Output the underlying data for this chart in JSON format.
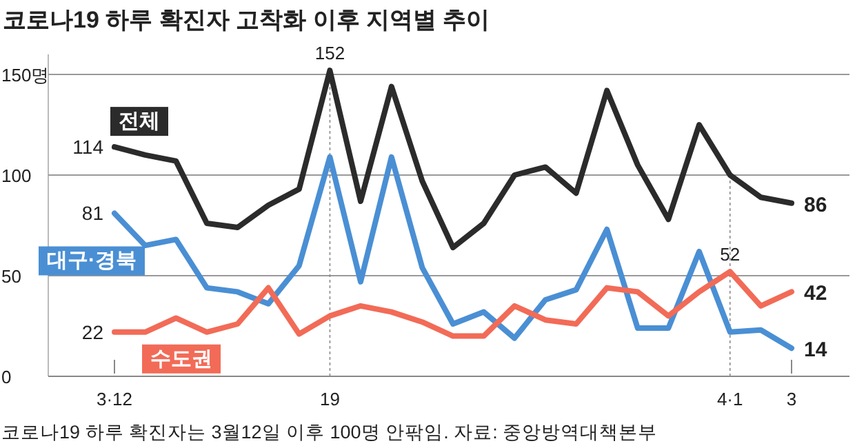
{
  "chart_data": {
    "type": "line",
    "title": "코로나19 하루 확진자 고착화 이후 지역별 추이",
    "categories": [
      "3·12",
      null,
      null,
      null,
      null,
      null,
      null,
      "19",
      null,
      null,
      null,
      null,
      null,
      null,
      null,
      null,
      null,
      null,
      null,
      null,
      "4·1",
      null,
      "3"
    ],
    "series": [
      {
        "name": "전체",
        "color": "#2b2b2b",
        "values": [
          114,
          110,
          107,
          76,
          74,
          85,
          93,
          152,
          87,
          144,
          97,
          64,
          76,
          100,
          104,
          91,
          142,
          105,
          78,
          125,
          100,
          89,
          86
        ],
        "value_labels": [
          "114",
          null,
          null,
          null,
          null,
          null,
          null,
          "152",
          null,
          null,
          null,
          null,
          null,
          null,
          null,
          null,
          null,
          null,
          null,
          null,
          null,
          null,
          "86"
        ]
      },
      {
        "name": "대구·경북",
        "color": "#4a8fd4",
        "values": [
          81,
          65,
          68,
          44,
          42,
          36,
          55,
          109,
          47,
          109,
          54,
          26,
          32,
          19,
          38,
          43,
          73,
          24,
          24,
          62,
          22,
          23,
          14
        ],
        "value_labels": [
          "81",
          null,
          null,
          null,
          null,
          null,
          null,
          null,
          null,
          null,
          null,
          null,
          null,
          null,
          null,
          null,
          null,
          null,
          null,
          null,
          null,
          null,
          "14"
        ]
      },
      {
        "name": "수도권",
        "color": "#f26b57",
        "values": [
          22,
          22,
          29,
          22,
          26,
          44,
          21,
          30,
          35,
          32,
          27,
          20,
          20,
          35,
          28,
          26,
          44,
          42,
          30,
          42,
          52,
          35,
          42
        ],
        "value_labels": [
          "22",
          null,
          null,
          null,
          null,
          null,
          null,
          null,
          null,
          null,
          null,
          null,
          null,
          null,
          null,
          null,
          null,
          null,
          null,
          null,
          "52",
          null,
          "42"
        ]
      }
    ],
    "ylim": [
      0,
      160
    ],
    "yticks": [
      0,
      50,
      100,
      {
        "value": 150,
        "label": "150명"
      }
    ],
    "grid": "y",
    "marker": "none",
    "line_style": "solid",
    "annotations": [
      "코로나19 하루 확진자는 3월12일 이후 100명 안팎임. 자료: 중앙방역대책본부"
    ]
  }
}
